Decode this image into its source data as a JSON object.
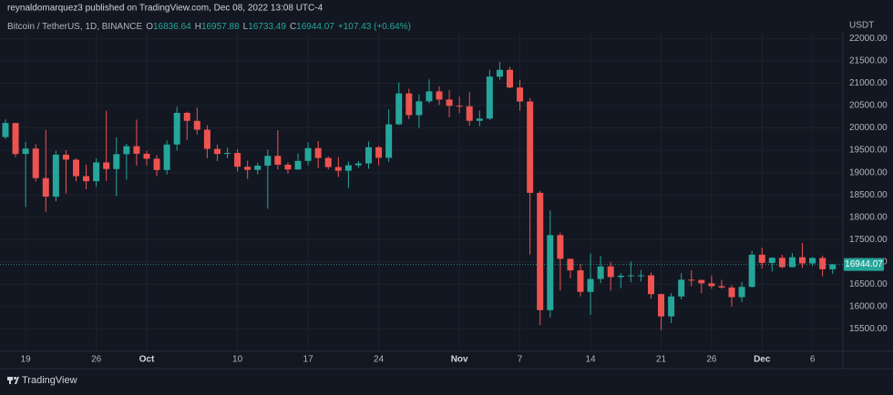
{
  "chart_data": {
    "type": "candlestick",
    "attribution": "reynaldomarquez3 published on TradingView.com, Dec 08, 2022 13:08 UTC-4",
    "symbol": "Bitcoin / TetherUS, 1D, BINANCE",
    "legend": {
      "open_label": "O",
      "open": 16836.64,
      "high_label": "H",
      "high": 16957.88,
      "low_label": "L",
      "low": 16733.49,
      "close_label": "C",
      "close": 16944.07,
      "change": "+107.43 (+0.64%)"
    },
    "currency": "USDT",
    "brand": "TradingView",
    "last_price": 16944.07,
    "up_color": "#26a69a",
    "down_color": "#ef5350",
    "ylim": [
      15000,
      22150
    ],
    "yticks": [
      {
        "value": 22000,
        "label": "22000.00"
      },
      {
        "value": 21500,
        "label": "21500.00"
      },
      {
        "value": 21000,
        "label": "21000.00"
      },
      {
        "value": 20500,
        "label": "20500.00"
      },
      {
        "value": 20000,
        "label": "20000.00"
      },
      {
        "value": 19500,
        "label": "19500.00"
      },
      {
        "value": 19000,
        "label": "19000.00"
      },
      {
        "value": 18500,
        "label": "18500.00"
      },
      {
        "value": 18000,
        "label": "18000.00"
      },
      {
        "value": 17500,
        "label": "17500.00"
      },
      {
        "value": 17000,
        "label": "17000.00"
      },
      {
        "value": 16500,
        "label": "16500.00"
      },
      {
        "value": 16000,
        "label": "16000.00"
      },
      {
        "value": 15500,
        "label": "15500.00"
      }
    ],
    "grid": true,
    "categories": [
      null,
      null,
      "19",
      null,
      null,
      null,
      null,
      null,
      null,
      "26",
      null,
      null,
      null,
      null,
      "Oct",
      null,
      null,
      null,
      null,
      null,
      null,
      null,
      null,
      "10",
      null,
      null,
      null,
      null,
      null,
      null,
      "17",
      null,
      null,
      null,
      null,
      null,
      null,
      "24",
      null,
      null,
      null,
      null,
      null,
      null,
      null,
      "Nov",
      null,
      null,
      null,
      null,
      null,
      "7",
      null,
      null,
      null,
      null,
      null,
      null,
      "14",
      null,
      null,
      null,
      null,
      null,
      null,
      "21",
      null,
      null,
      null,
      null,
      "26",
      null,
      null,
      null,
      null,
      "Dec",
      null,
      null,
      null,
      null,
      "6",
      null,
      null
    ],
    "open": [
      19795,
      20110,
      19417,
      19538,
      18876,
      18461,
      19401,
      19289,
      18920,
      18807,
      19227,
      19079,
      19413,
      19591,
      19422,
      19310,
      19057,
      19629,
      20337,
      20158,
      19960,
      19531,
      19417,
      19439,
      19131,
      19060,
      19155,
      19375,
      19176,
      19069,
      19262,
      19549,
      19327,
      19124,
      19041,
      19164,
      19205,
      19567,
      19331,
      20080,
      20772,
      20287,
      20595,
      20818,
      20635,
      20495,
      20485,
      20159,
      20209,
      21148,
      21300,
      20905,
      20591,
      18547,
      15922,
      17601,
      17070,
      16812,
      16330,
      16620,
      16900,
      16662,
      16692,
      16700,
      16700,
      16280,
      15781,
      16227,
      16603,
      16598,
      16522,
      16458,
      16428,
      16212,
      16442,
      17163,
      16978,
      17092,
      16885,
      17105,
      16966,
      17089,
      16836.64
    ],
    "high": [
      20190,
      20110,
      19689,
      19635,
      19956,
      19490,
      19500,
      19316,
      19180,
      19316,
      20385,
      19790,
      19645,
      20185,
      19485,
      19395,
      19719,
      20475,
      20365,
      20456,
      20059,
      19627,
      19558,
      19525,
      19268,
      19219,
      19513,
      19951,
      19227,
      19426,
      19676,
      19706,
      19360,
      19347,
      19250,
      19257,
      19695,
      19601,
      20415,
      21020,
      20875,
      20750,
      21085,
      20931,
      20845,
      20700,
      20800,
      20392,
      21302,
      21480,
      21365,
      21069,
      20670,
      18587,
      18154,
      17655,
      17070,
      16955,
      17190,
      17134,
      17000,
      16750,
      17011,
      16820,
      16760,
      16291,
      16300,
      16750,
      16812,
      16600,
      16700,
      16600,
      16482,
      16550,
      17250,
      17320,
      17105,
      17160,
      17200,
      17424,
      17107,
      17142,
      16957.88
    ],
    "low": [
      19750,
      19350,
      18232,
      18800,
      18125,
      18356,
      18531,
      18805,
      18629,
      18680,
      18816,
      18471,
      18843,
      19155,
      19159,
      18920,
      18960,
      19493,
      19730,
      19853,
      19320,
      19256,
      19320,
      19027,
      18860,
      18961,
      18190,
      19069,
      18975,
      19065,
      19160,
      19100,
      19073,
      18900,
      18650,
      19111,
      19086,
      19157,
      19242,
      20063,
      20200,
      20000,
      20553,
      20514,
      20237,
      20330,
      20048,
      20036,
      20180,
      21075,
      20886,
      20384,
      17166,
      15588,
      15754,
      16361,
      16631,
      16229,
      15815,
      16527,
      16361,
      16410,
      16546,
      16560,
      16180,
      15476,
      15630,
      16160,
      16458,
      16300,
      16400,
      16400,
      16000,
      16100,
      16430,
      16855,
      16787,
      16860,
      16878,
      16867,
      16906,
      16678,
      16733.49
    ],
    "close": [
      20110,
      19416,
      19538,
      18876,
      18461,
      19401,
      19289,
      18920,
      18807,
      19227,
      19079,
      19413,
      19591,
      19422,
      19310,
      19057,
      19629,
      20337,
      20158,
      19960,
      19531,
      19417,
      19439,
      19131,
      19060,
      19155,
      19375,
      19176,
      19069,
      19262,
      19549,
      19327,
      19124,
      19041,
      19164,
      19205,
      19567,
      19331,
      20080,
      20772,
      20287,
      20595,
      20818,
      20635,
      20495,
      20485,
      20159,
      20209,
      21148,
      21300,
      20905,
      20591,
      18547,
      15922,
      17601,
      17070,
      16812,
      16330,
      16620,
      16900,
      16662,
      16692,
      16700,
      16700,
      16280,
      15781,
      16227,
      16603,
      16598,
      16522,
      16458,
      16428,
      16212,
      16442,
      17163,
      16978,
      17092,
      16885,
      17105,
      16966,
      17089,
      16836.64,
      16944.07
    ]
  }
}
